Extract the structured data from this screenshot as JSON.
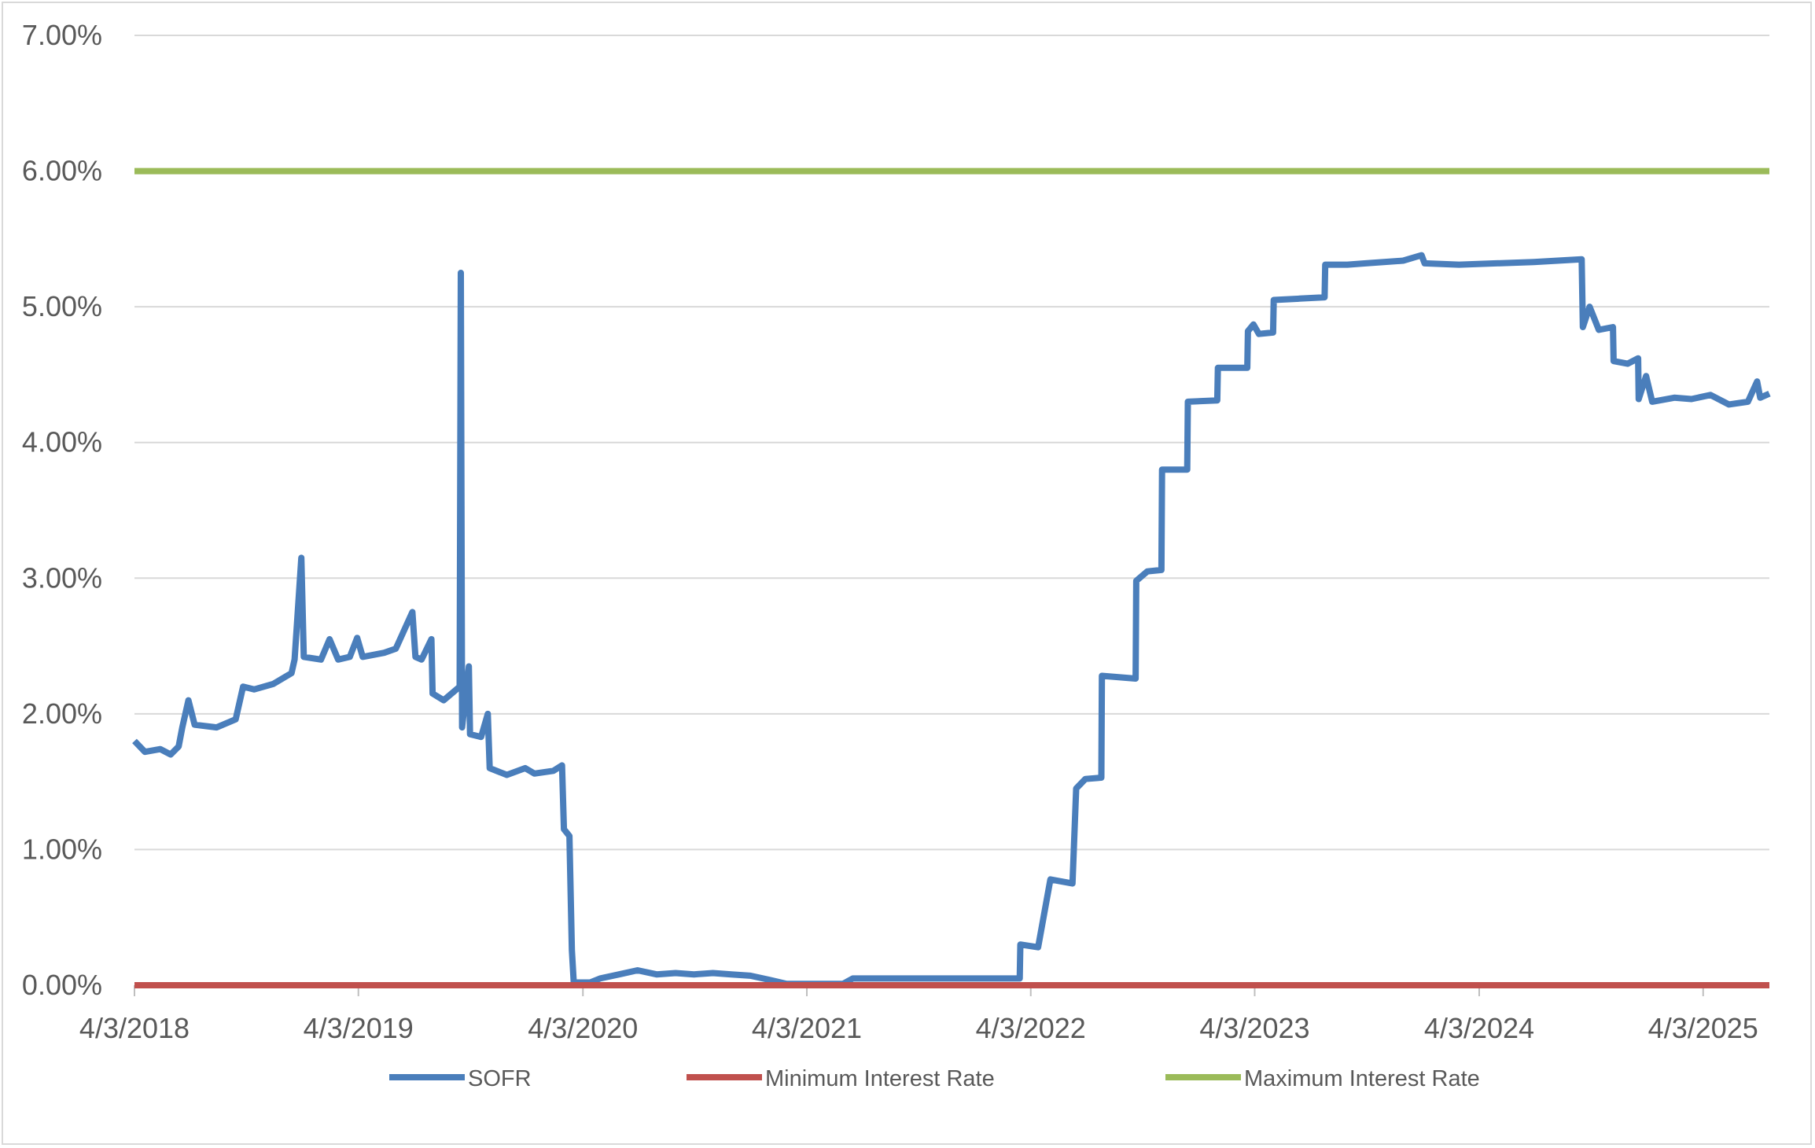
{
  "chart_data": {
    "type": "line",
    "title": "",
    "xlabel": "",
    "ylabel": "",
    "ylim": [
      0,
      7
    ],
    "y_ticks": [
      {
        "value": 0,
        "label": "0.00%"
      },
      {
        "value": 1,
        "label": "1.00%"
      },
      {
        "value": 2,
        "label": "2.00%"
      },
      {
        "value": 3,
        "label": "3.00%"
      },
      {
        "value": 4,
        "label": "4.00%"
      },
      {
        "value": 5,
        "label": "5.00%"
      },
      {
        "value": 6,
        "label": "6.00%"
      },
      {
        "value": 7,
        "label": "7.00%"
      }
    ],
    "xlim": [
      "2018-04-03",
      "2025-07-20"
    ],
    "x_ticks": [
      {
        "date": "2018-04-03",
        "label": "4/3/2018"
      },
      {
        "date": "2019-04-03",
        "label": "4/3/2019"
      },
      {
        "date": "2020-04-03",
        "label": "4/3/2020"
      },
      {
        "date": "2021-04-03",
        "label": "4/3/2021"
      },
      {
        "date": "2022-04-03",
        "label": "4/3/2022"
      },
      {
        "date": "2023-04-03",
        "label": "4/3/2023"
      },
      {
        "date": "2024-04-03",
        "label": "4/3/2024"
      },
      {
        "date": "2025-04-03",
        "label": "4/3/2025"
      }
    ],
    "grid": "horizontal",
    "legend_position": "bottom",
    "series": [
      {
        "name": "SOFR",
        "color": "#4a7ebb",
        "points": [
          [
            "2018-04-03",
            1.8
          ],
          [
            "2018-04-20",
            1.72
          ],
          [
            "2018-05-15",
            1.74
          ],
          [
            "2018-06-01",
            1.7
          ],
          [
            "2018-06-14",
            1.76
          ],
          [
            "2018-06-20",
            1.9
          ],
          [
            "2018-06-30",
            2.1
          ],
          [
            "2018-07-10",
            1.92
          ],
          [
            "2018-08-15",
            1.9
          ],
          [
            "2018-09-15",
            1.96
          ],
          [
            "2018-09-27",
            2.2
          ],
          [
            "2018-10-15",
            2.18
          ],
          [
            "2018-11-15",
            2.22
          ],
          [
            "2018-12-15",
            2.3
          ],
          [
            "2018-12-20",
            2.4
          ],
          [
            "2018-12-31",
            3.15
          ],
          [
            "2019-01-04",
            2.42
          ],
          [
            "2019-02-01",
            2.4
          ],
          [
            "2019-02-15",
            2.55
          ],
          [
            "2019-03-01",
            2.4
          ],
          [
            "2019-03-20",
            2.42
          ],
          [
            "2019-04-01",
            2.56
          ],
          [
            "2019-04-10",
            2.42
          ],
          [
            "2019-05-15",
            2.45
          ],
          [
            "2019-06-03",
            2.48
          ],
          [
            "2019-06-30",
            2.75
          ],
          [
            "2019-07-05",
            2.42
          ],
          [
            "2019-07-15",
            2.4
          ],
          [
            "2019-07-31",
            2.55
          ],
          [
            "2019-08-02",
            2.15
          ],
          [
            "2019-08-20",
            2.1
          ],
          [
            "2019-09-15",
            2.2
          ],
          [
            "2019-09-17",
            5.25
          ],
          [
            "2019-09-19",
            1.9
          ],
          [
            "2019-09-30",
            2.35
          ],
          [
            "2019-10-02",
            1.85
          ],
          [
            "2019-10-20",
            1.83
          ],
          [
            "2019-10-31",
            2.0
          ],
          [
            "2019-11-03",
            1.6
          ],
          [
            "2019-12-01",
            1.55
          ],
          [
            "2019-12-31",
            1.6
          ],
          [
            "2020-01-15",
            1.56
          ],
          [
            "2020-02-15",
            1.58
          ],
          [
            "2020-02-29",
            1.62
          ],
          [
            "2020-03-03",
            1.15
          ],
          [
            "2020-03-12",
            1.1
          ],
          [
            "2020-03-16",
            0.26
          ],
          [
            "2020-03-19",
            0.02
          ],
          [
            "2020-04-15",
            0.02
          ],
          [
            "2020-05-01",
            0.05
          ],
          [
            "2020-06-01",
            0.08
          ],
          [
            "2020-07-01",
            0.11
          ],
          [
            "2020-08-01",
            0.08
          ],
          [
            "2020-09-01",
            0.09
          ],
          [
            "2020-10-01",
            0.08
          ],
          [
            "2020-11-01",
            0.09
          ],
          [
            "2020-12-01",
            0.08
          ],
          [
            "2021-01-01",
            0.07
          ],
          [
            "2021-02-01",
            0.04
          ],
          [
            "2021-03-01",
            0.01
          ],
          [
            "2021-04-01",
            0.01
          ],
          [
            "2021-06-01",
            0.01
          ],
          [
            "2021-06-17",
            0.05
          ],
          [
            "2021-09-01",
            0.05
          ],
          [
            "2021-12-01",
            0.05
          ],
          [
            "2022-03-16",
            0.05
          ],
          [
            "2022-03-17",
            0.3
          ],
          [
            "2022-04-15",
            0.28
          ],
          [
            "2022-05-05",
            0.78
          ],
          [
            "2022-06-10",
            0.75
          ],
          [
            "2022-06-16",
            1.45
          ],
          [
            "2022-07-01",
            1.52
          ],
          [
            "2022-07-27",
            1.53
          ],
          [
            "2022-07-28",
            2.28
          ],
          [
            "2022-09-21",
            2.26
          ],
          [
            "2022-09-22",
            2.98
          ],
          [
            "2022-10-10",
            3.05
          ],
          [
            "2022-11-02",
            3.06
          ],
          [
            "2022-11-03",
            3.8
          ],
          [
            "2022-12-14",
            3.8
          ],
          [
            "2022-12-15",
            4.3
          ],
          [
            "2023-02-01",
            4.31
          ],
          [
            "2023-02-02",
            4.55
          ],
          [
            "2023-03-22",
            4.55
          ],
          [
            "2023-03-23",
            4.82
          ],
          [
            "2023-04-01",
            4.87
          ],
          [
            "2023-04-10",
            4.8
          ],
          [
            "2023-05-03",
            4.81
          ],
          [
            "2023-05-04",
            5.05
          ],
          [
            "2023-06-15",
            5.06
          ],
          [
            "2023-07-26",
            5.07
          ],
          [
            "2023-07-27",
            5.31
          ],
          [
            "2023-09-01",
            5.31
          ],
          [
            "2023-10-01",
            5.32
          ],
          [
            "2023-12-01",
            5.34
          ],
          [
            "2023-12-31",
            5.38
          ],
          [
            "2024-01-05",
            5.32
          ],
          [
            "2024-03-01",
            5.31
          ],
          [
            "2024-05-01",
            5.32
          ],
          [
            "2024-07-01",
            5.33
          ],
          [
            "2024-09-17",
            5.35
          ],
          [
            "2024-09-19",
            4.85
          ],
          [
            "2024-09-30",
            5.0
          ],
          [
            "2024-10-15",
            4.83
          ],
          [
            "2024-11-07",
            4.85
          ],
          [
            "2024-11-08",
            4.6
          ],
          [
            "2024-12-01",
            4.58
          ],
          [
            "2024-12-18",
            4.62
          ],
          [
            "2024-12-19",
            4.32
          ],
          [
            "2024-12-31",
            4.49
          ],
          [
            "2025-01-10",
            4.3
          ],
          [
            "2025-02-15",
            4.33
          ],
          [
            "2025-03-15",
            4.32
          ],
          [
            "2025-04-15",
            4.35
          ],
          [
            "2025-05-15",
            4.28
          ],
          [
            "2025-06-15",
            4.3
          ],
          [
            "2025-06-30",
            4.45
          ],
          [
            "2025-07-05",
            4.33
          ],
          [
            "2025-07-20",
            4.36
          ]
        ]
      },
      {
        "name": "Minimum Interest Rate",
        "color": "#c0504d",
        "points": [
          [
            "2018-04-03",
            0
          ],
          [
            "2025-07-20",
            0
          ]
        ]
      },
      {
        "name": "Maximum Interest Rate",
        "color": "#9bbb59",
        "points": [
          [
            "2018-04-03",
            6
          ],
          [
            "2025-07-20",
            6
          ]
        ]
      }
    ]
  }
}
